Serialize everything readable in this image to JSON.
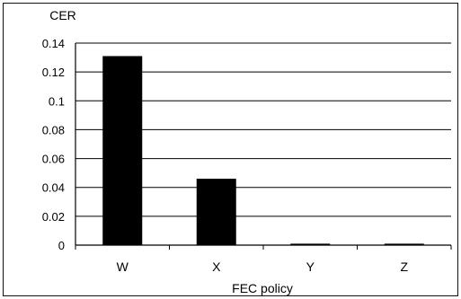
{
  "chart_data": {
    "type": "bar",
    "title": "",
    "ylabel": "CER",
    "xlabel": "FEC policy",
    "categories": [
      "W",
      "X",
      "Y",
      "Z"
    ],
    "values": [
      0.131,
      0.046,
      0.001,
      0.001
    ],
    "ylim": [
      0,
      0.14
    ],
    "yticks": [
      "0",
      "0.02",
      "0.04",
      "0.06",
      "0.08",
      "0.1",
      "0.12",
      "0.14"
    ],
    "grid": true,
    "legend": false,
    "bar_color": "#000000",
    "grid_color": "#000000"
  }
}
